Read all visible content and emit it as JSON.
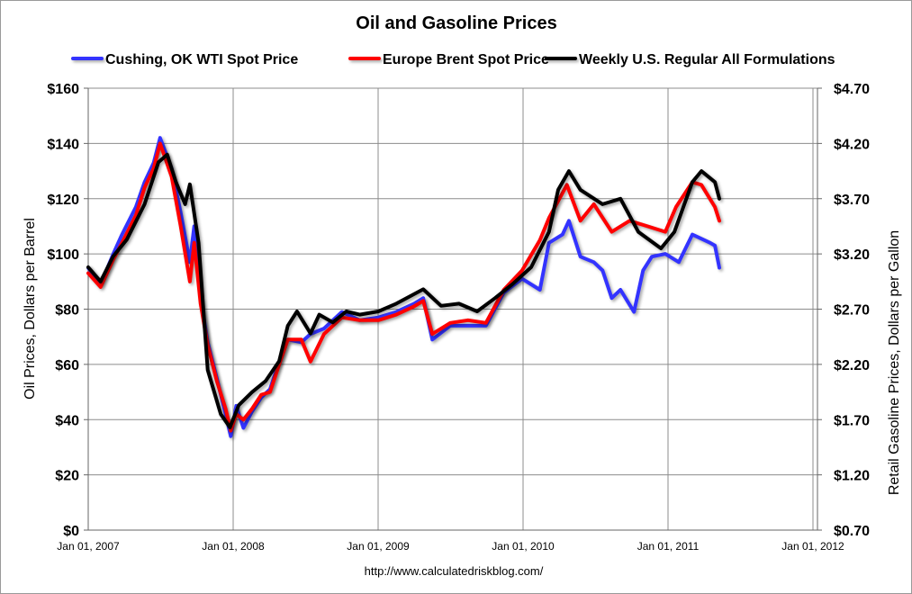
{
  "chart_data": {
    "type": "line",
    "title": "Oil and Gasoline Prices",
    "ylabel": "Oil Prices, Dollars per Barrel",
    "y2label": "Retail Gasoline Prices, Dollars per Gallon",
    "ylim": [
      0,
      160
    ],
    "y2lim": [
      0.7,
      4.7
    ],
    "yticks": [
      "$0",
      "$20",
      "$40",
      "$60",
      "$80",
      "$100",
      "$120",
      "$140",
      "$160"
    ],
    "y2ticks": [
      "$0.70",
      "$1.20",
      "$1.70",
      "$2.20",
      "$2.70",
      "$3.20",
      "$3.70",
      "$4.20",
      "$4.70"
    ],
    "xticks": [
      "Jan 01, 2007",
      "Jan 01, 2008",
      "Jan 01, 2009",
      "Jan 01, 2010",
      "Jan 01, 2011",
      "Jan 01, 2012"
    ],
    "xlim": [
      "2007-01-01",
      "2012-01-01"
    ],
    "grid": true,
    "legend": "top",
    "source": "http://www.calculatedriskblog.com/",
    "series": [
      {
        "name": "Cushing, OK WTI Spot Price",
        "axis": "left",
        "color": "#3333ff",
        "points": [
          [
            "2007-01-01",
            95
          ],
          [
            "2007-02-01",
            89
          ],
          [
            "2007-03-05",
            100
          ],
          [
            "2007-03-27",
            107
          ],
          [
            "2007-05-01",
            117
          ],
          [
            "2007-05-23",
            126
          ],
          [
            "2007-06-15",
            133
          ],
          [
            "2007-07-01",
            142
          ],
          [
            "2007-07-30",
            131
          ],
          [
            "2007-08-22",
            115
          ],
          [
            "2007-09-14",
            97
          ],
          [
            "2007-09-25",
            110
          ],
          [
            "2007-10-11",
            84
          ],
          [
            "2007-10-29",
            68
          ],
          [
            "2007-11-21",
            55
          ],
          [
            "2007-12-13",
            42
          ],
          [
            "2007-12-26",
            34
          ],
          [
            "2008-01-09",
            45
          ],
          [
            "2008-01-27",
            37
          ],
          [
            "2008-02-18",
            43
          ],
          [
            "2008-03-12",
            48
          ],
          [
            "2008-04-03",
            51
          ],
          [
            "2008-04-26",
            61
          ],
          [
            "2008-05-18",
            69
          ],
          [
            "2008-06-21",
            68
          ],
          [
            "2008-07-14",
            71
          ],
          [
            "2008-08-17",
            73
          ],
          [
            "2008-10-01",
            79
          ],
          [
            "2008-11-15",
            76
          ],
          [
            "2009-01-01",
            77
          ],
          [
            "2009-02-15",
            79
          ],
          [
            "2009-04-01",
            82
          ],
          [
            "2009-04-24",
            84
          ],
          [
            "2009-05-17",
            69
          ],
          [
            "2009-07-01",
            74
          ],
          [
            "2009-08-15",
            74
          ],
          [
            "2009-09-29",
            74
          ],
          [
            "2009-11-13",
            86
          ],
          [
            "2009-12-29",
            91
          ],
          [
            "2010-02-12",
            87
          ],
          [
            "2010-03-07",
            104
          ],
          [
            "2010-04-10",
            107
          ],
          [
            "2010-04-26",
            112
          ],
          [
            "2010-05-25",
            99
          ],
          [
            "2010-06-28",
            97
          ],
          [
            "2010-07-20",
            94
          ],
          [
            "2010-08-12",
            84
          ],
          [
            "2010-09-03",
            87
          ],
          [
            "2010-10-07",
            79
          ],
          [
            "2010-10-30",
            94
          ],
          [
            "2010-11-21",
            99
          ],
          [
            "2010-12-25",
            100
          ],
          [
            "2011-01-28",
            97
          ],
          [
            "2011-03-03",
            107
          ],
          [
            "2011-04-17",
            104
          ],
          [
            "2011-04-29",
            103
          ],
          [
            "2011-05-10",
            95
          ]
        ]
      },
      {
        "name": "Europe Brent Spot Price",
        "axis": "left",
        "color": "#ff0000",
        "points": [
          [
            "2007-01-01",
            93
          ],
          [
            "2007-02-01",
            88
          ],
          [
            "2007-03-05",
            98
          ],
          [
            "2007-03-27",
            104
          ],
          [
            "2007-05-01",
            114
          ],
          [
            "2007-05-23",
            124
          ],
          [
            "2007-06-15",
            131
          ],
          [
            "2007-07-01",
            140
          ],
          [
            "2007-07-30",
            128
          ],
          [
            "2007-08-22",
            110
          ],
          [
            "2007-09-14",
            90
          ],
          [
            "2007-09-25",
            104
          ],
          [
            "2007-10-11",
            82
          ],
          [
            "2007-10-29",
            67
          ],
          [
            "2007-11-21",
            54
          ],
          [
            "2007-12-13",
            44
          ],
          [
            "2007-12-26",
            36
          ],
          [
            "2008-01-09",
            42
          ],
          [
            "2008-01-27",
            40
          ],
          [
            "2008-02-18",
            44
          ],
          [
            "2008-03-12",
            49
          ],
          [
            "2008-04-03",
            50
          ],
          [
            "2008-04-26",
            60
          ],
          [
            "2008-05-18",
            69
          ],
          [
            "2008-06-21",
            69
          ],
          [
            "2008-07-14",
            61
          ],
          [
            "2008-08-17",
            71
          ],
          [
            "2008-10-01",
            77
          ],
          [
            "2008-11-15",
            76
          ],
          [
            "2009-01-01",
            76
          ],
          [
            "2009-02-15",
            78
          ],
          [
            "2009-04-01",
            81
          ],
          [
            "2009-04-24",
            83
          ],
          [
            "2009-05-17",
            71
          ],
          [
            "2009-07-01",
            75
          ],
          [
            "2009-08-15",
            76
          ],
          [
            "2009-09-29",
            75
          ],
          [
            "2009-11-13",
            87
          ],
          [
            "2009-12-29",
            94
          ],
          [
            "2010-02-12",
            105
          ],
          [
            "2010-03-07",
            113
          ],
          [
            "2010-04-21",
            125
          ],
          [
            "2010-05-25",
            112
          ],
          [
            "2010-06-28",
            118
          ],
          [
            "2010-08-12",
            108
          ],
          [
            "2010-09-26",
            112
          ],
          [
            "2010-11-10",
            110
          ],
          [
            "2010-12-25",
            108
          ],
          [
            "2011-01-21",
            117
          ],
          [
            "2011-03-03",
            126
          ],
          [
            "2011-03-26",
            125
          ],
          [
            "2011-04-29",
            117
          ],
          [
            "2011-05-10",
            112
          ]
        ]
      },
      {
        "name": "Weekly U.S. Regular All Formulations",
        "axis": "right",
        "color": "#000000",
        "points": [
          [
            "2007-01-01",
            3.08
          ],
          [
            "2007-02-01",
            2.95
          ],
          [
            "2007-03-05",
            3.18
          ],
          [
            "2007-04-08",
            3.33
          ],
          [
            "2007-05-23",
            3.65
          ],
          [
            "2007-06-27",
            4.03
          ],
          [
            "2007-07-19",
            4.1
          ],
          [
            "2007-08-10",
            3.85
          ],
          [
            "2007-09-02",
            3.65
          ],
          [
            "2007-09-14",
            3.83
          ],
          [
            "2007-10-06",
            3.3
          ],
          [
            "2007-10-29",
            2.15
          ],
          [
            "2007-12-01",
            1.75
          ],
          [
            "2007-12-24",
            1.63
          ],
          [
            "2008-01-15",
            1.83
          ],
          [
            "2008-02-18",
            1.95
          ],
          [
            "2008-03-23",
            2.05
          ],
          [
            "2008-04-26",
            2.23
          ],
          [
            "2008-05-18",
            2.55
          ],
          [
            "2008-06-10",
            2.68
          ],
          [
            "2008-07-14",
            2.48
          ],
          [
            "2008-08-05",
            2.65
          ],
          [
            "2008-09-08",
            2.58
          ],
          [
            "2008-10-12",
            2.68
          ],
          [
            "2008-11-15",
            2.65
          ],
          [
            "2009-01-01",
            2.68
          ],
          [
            "2009-02-15",
            2.75
          ],
          [
            "2009-04-24",
            2.88
          ],
          [
            "2009-06-08",
            2.73
          ],
          [
            "2009-07-23",
            2.75
          ],
          [
            "2009-09-07",
            2.68
          ],
          [
            "2009-10-22",
            2.8
          ],
          [
            "2009-12-06",
            2.93
          ],
          [
            "2010-01-21",
            3.08
          ],
          [
            "2010-03-07",
            3.4
          ],
          [
            "2010-03-30",
            3.78
          ],
          [
            "2010-04-26",
            3.95
          ],
          [
            "2010-05-25",
            3.78
          ],
          [
            "2010-07-20",
            3.65
          ],
          [
            "2010-09-03",
            3.7
          ],
          [
            "2010-10-18",
            3.4
          ],
          [
            "2010-12-14",
            3.25
          ],
          [
            "2011-01-17",
            3.4
          ],
          [
            "2011-03-03",
            3.85
          ],
          [
            "2011-03-26",
            3.95
          ],
          [
            "2011-04-29",
            3.85
          ],
          [
            "2011-05-10",
            3.7
          ]
        ]
      }
    ]
  }
}
